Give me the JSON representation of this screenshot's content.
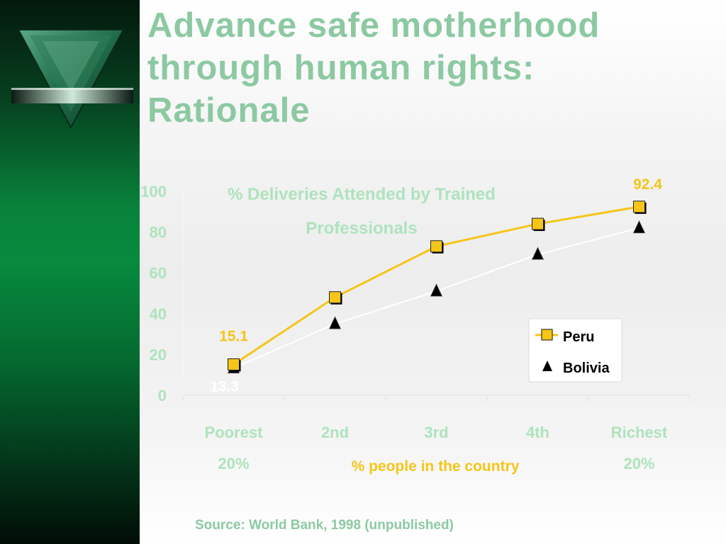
{
  "slide": {
    "title_lines": [
      "Advance safe motherhood",
      "through human  rights:",
      "Rationale"
    ],
    "source": "Source:  World Bank, 1998 (unpublished)"
  },
  "colors": {
    "sidebar": "#078a3e",
    "title": "#8cc9a2",
    "peru": "#f5c518",
    "bolivia_line": "#ffffff",
    "bolivia_marker": "#000000",
    "axis": "#e6e6e6"
  },
  "chart_data": {
    "type": "line",
    "title_lines": [
      "% Deliveries Attended by Trained",
      "Professionals"
    ],
    "categories": [
      [
        "Poorest",
        "20%"
      ],
      [
        "2nd"
      ],
      [
        "3rd"
      ],
      [
        "4th"
      ],
      [
        "Richest",
        "20%"
      ]
    ],
    "xlabel": "% people in the country",
    "ylabel": "",
    "ylim": [
      0,
      100
    ],
    "yticks": [
      0,
      20,
      40,
      60,
      80,
      100
    ],
    "series": [
      {
        "name": "Peru",
        "marker": "square",
        "values": [
          15.1,
          48,
          73,
          84,
          92.4
        ]
      },
      {
        "name": "Bolivia",
        "marker": "triangle",
        "values": [
          13.3,
          35,
          51,
          69,
          82
        ]
      }
    ],
    "data_labels": [
      {
        "series": 0,
        "index": 0,
        "text": "15.1"
      },
      {
        "series": 0,
        "index": 4,
        "text": "92.4"
      },
      {
        "series": 1,
        "index": 0,
        "text": "13.3"
      }
    ],
    "legend": {
      "position": "right",
      "items": [
        "Peru",
        "Bolivia"
      ]
    },
    "grid": false
  }
}
